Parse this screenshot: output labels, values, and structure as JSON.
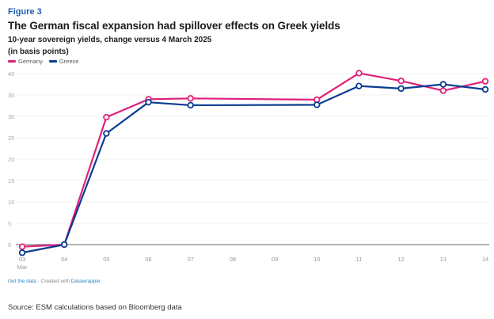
{
  "figure_label": "Figure 3",
  "chart_data": {
    "type": "line",
    "title": "The German fiscal expansion had spillover effects on Greek yields",
    "subtitle": "10-year sovereign yields, change versus 4 March 2025",
    "unit_label": "(in basis points)",
    "xlabel": "",
    "ylabel": "",
    "x": [
      "03",
      "04",
      "05",
      "06",
      "07",
      "08",
      "09",
      "10",
      "11",
      "12",
      "13",
      "14"
    ],
    "x_sublabel": {
      "03": "Mar"
    },
    "ylim": [
      -2,
      40
    ],
    "yticks": [
      0,
      5,
      10,
      15,
      20,
      25,
      30,
      35,
      40
    ],
    "grid": true,
    "legend_position": "top-left",
    "series": [
      {
        "name": "Germany",
        "color": "#e0207a",
        "values": [
          -0.5,
          0,
          29.8,
          34.0,
          34.2,
          null,
          null,
          33.9,
          40.1,
          38.3,
          36.0,
          38.2
        ]
      },
      {
        "name": "Greece",
        "color": "#0a3d91",
        "values": [
          -1.9,
          0,
          26.0,
          33.3,
          32.6,
          null,
          null,
          32.7,
          37.1,
          36.5,
          37.5,
          36.3
        ]
      }
    ]
  },
  "footer": {
    "get_data": "Get the data",
    "separator": " · Created with ",
    "datawrapper": "Datawrapper"
  },
  "source": "Source: ESM calculations based on Bloomberg data"
}
